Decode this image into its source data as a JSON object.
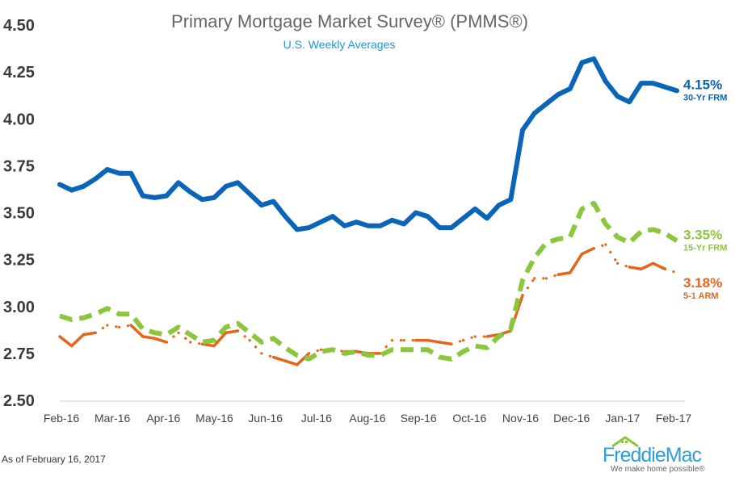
{
  "header": {
    "title": "Primary Mortgage Market Survey® (PMMS®)",
    "subtitle": "U.S. Weekly Averages"
  },
  "footer": {
    "as_of": "As of February 16, 2017",
    "logo_text": "FreddieMac",
    "logo_tagline": "We make home possible®"
  },
  "chart_data": {
    "type": "line",
    "title": "Primary Mortgage Market Survey® (PMMS®)",
    "subtitle": "U.S. Weekly Averages",
    "xlabel": "",
    "ylabel": "",
    "ylim": [
      2.5,
      4.5
    ],
    "yticks": [
      "4.50",
      "4.25",
      "4.00",
      "3.75",
      "3.50",
      "3.25",
      "3.00",
      "2.75",
      "2.50"
    ],
    "xticks": [
      "Feb-16",
      "Mar-16",
      "Apr-16",
      "May-16",
      "Jun-16",
      "Jul-16",
      "Aug-16",
      "Sep-16",
      "Oct-16",
      "Nov-16",
      "Dec-16",
      "Jan-17",
      "Feb-17"
    ],
    "grid": false,
    "weeks": [
      "2016-02-18",
      "2016-02-25",
      "2016-03-03",
      "2016-03-10",
      "2016-03-17",
      "2016-03-24",
      "2016-03-31",
      "2016-04-07",
      "2016-04-14",
      "2016-04-21",
      "2016-04-28",
      "2016-05-05",
      "2016-05-12",
      "2016-05-19",
      "2016-05-26",
      "2016-06-02",
      "2016-06-09",
      "2016-06-16",
      "2016-06-23",
      "2016-06-30",
      "2016-07-07",
      "2016-07-14",
      "2016-07-21",
      "2016-07-28",
      "2016-08-04",
      "2016-08-11",
      "2016-08-18",
      "2016-08-25",
      "2016-09-01",
      "2016-09-08",
      "2016-09-15",
      "2016-09-22",
      "2016-09-29",
      "2016-10-06",
      "2016-10-13",
      "2016-10-20",
      "2016-10-27",
      "2016-11-03",
      "2016-11-10",
      "2016-11-17",
      "2016-11-23",
      "2016-12-01",
      "2016-12-08",
      "2016-12-15",
      "2016-12-22",
      "2016-12-29",
      "2017-01-05",
      "2017-01-12",
      "2017-01-19",
      "2017-01-26",
      "2017-02-02",
      "2017-02-09",
      "2017-02-16"
    ],
    "series": [
      {
        "name": "30-Yr FRM",
        "latest_label": "4.15%",
        "color": "#0a64b7",
        "style": "solid",
        "values": [
          3.65,
          3.62,
          3.64,
          3.68,
          3.73,
          3.71,
          3.71,
          3.59,
          3.58,
          3.59,
          3.66,
          3.61,
          3.57,
          3.58,
          3.64,
          3.66,
          3.6,
          3.54,
          3.56,
          3.48,
          3.41,
          3.42,
          3.45,
          3.48,
          3.43,
          3.45,
          3.43,
          3.43,
          3.46,
          3.44,
          3.5,
          3.48,
          3.42,
          3.42,
          3.47,
          3.52,
          3.47,
          3.54,
          3.57,
          3.94,
          4.03,
          4.08,
          4.13,
          4.16,
          4.3,
          4.32,
          4.2,
          4.12,
          4.09,
          4.19,
          4.19,
          4.17,
          4.15
        ]
      },
      {
        "name": "15-Yr FRM",
        "latest_label": "3.35%",
        "color": "#8cc63f",
        "style": "dashed",
        "values": [
          2.95,
          2.93,
          2.94,
          2.96,
          2.99,
          2.96,
          2.96,
          2.88,
          2.86,
          2.85,
          2.89,
          2.85,
          2.81,
          2.82,
          2.89,
          2.91,
          2.86,
          2.81,
          2.83,
          2.78,
          2.74,
          2.72,
          2.76,
          2.77,
          2.75,
          2.76,
          2.74,
          2.74,
          2.77,
          2.77,
          2.77,
          2.77,
          2.73,
          2.72,
          2.76,
          2.79,
          2.78,
          2.84,
          2.88,
          3.14,
          3.26,
          3.34,
          3.36,
          3.37,
          3.52,
          3.55,
          3.44,
          3.37,
          3.34,
          3.4,
          3.41,
          3.39,
          3.35
        ]
      },
      {
        "name": "5-1 ARM",
        "latest_label": "3.18%",
        "color": "#e4661b",
        "style": "mixed",
        "values": [
          2.84,
          2.79,
          2.85,
          2.86,
          2.9,
          2.89,
          2.9,
          2.84,
          2.83,
          2.81,
          2.86,
          2.81,
          2.8,
          2.79,
          2.86,
          2.87,
          2.82,
          2.75,
          2.73,
          2.71,
          2.69,
          2.75,
          2.77,
          2.77,
          2.76,
          2.76,
          2.75,
          2.75,
          2.82,
          2.82,
          2.82,
          2.82,
          2.81,
          2.8,
          2.82,
          2.84,
          2.84,
          2.85,
          2.87,
          3.06,
          3.15,
          3.15,
          3.17,
          3.18,
          3.28,
          3.31,
          3.33,
          3.23,
          3.21,
          3.2,
          3.23,
          3.2,
          3.18
        ]
      }
    ]
  }
}
